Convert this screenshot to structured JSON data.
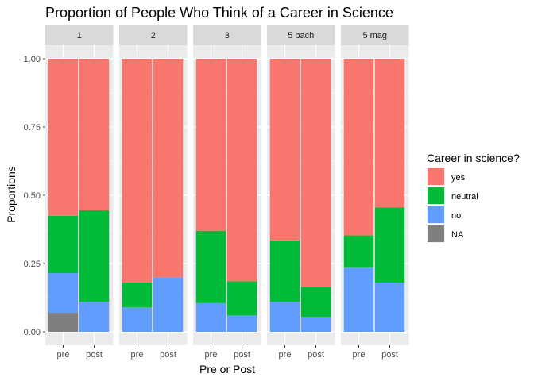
{
  "chart_data": {
    "type": "bar",
    "stacked": true,
    "title": "Proportion of People Who Think of a Career in Science",
    "xlabel": "Pre or Post",
    "ylabel": "Proportions",
    "ylim": [
      0,
      1
    ],
    "yticks": [
      "0.00",
      "0.25",
      "0.50",
      "0.75",
      "1.00"
    ],
    "ytick_values": [
      0,
      0.25,
      0.5,
      0.75,
      1
    ],
    "grid": true,
    "legend": {
      "title": "Career in science?",
      "position": "right",
      "entries": [
        {
          "label": "yes",
          "color": "#F8766D"
        },
        {
          "label": "neutral",
          "color": "#00BA38"
        },
        {
          "label": "no",
          "color": "#619CFF"
        },
        {
          "label": "NA",
          "color": "#7F7F7F"
        }
      ]
    },
    "categories": [
      "pre",
      "post"
    ],
    "facets": [
      {
        "label": "1",
        "bars": [
          {
            "x": "pre",
            "values": {
              "NA": 0.07,
              "no": 0.145,
              "neutral": 0.21,
              "yes": 0.575
            }
          },
          {
            "x": "post",
            "values": {
              "NA": 0,
              "no": 0.11,
              "neutral": 0.335,
              "yes": 0.555
            }
          }
        ]
      },
      {
        "label": "2",
        "bars": [
          {
            "x": "pre",
            "values": {
              "NA": 0,
              "no": 0.09,
              "neutral": 0.09,
              "yes": 0.82
            }
          },
          {
            "x": "post",
            "values": {
              "NA": 0,
              "no": 0.2,
              "neutral": 0,
              "yes": 0.8
            }
          }
        ]
      },
      {
        "label": "3",
        "bars": [
          {
            "x": "pre",
            "values": {
              "NA": 0,
              "no": 0.105,
              "neutral": 0.265,
              "yes": 0.63
            }
          },
          {
            "x": "post",
            "values": {
              "NA": 0,
              "no": 0.06,
              "neutral": 0.125,
              "yes": 0.815
            }
          }
        ]
      },
      {
        "label": "5 bach",
        "bars": [
          {
            "x": "pre",
            "values": {
              "NA": 0,
              "no": 0.11,
              "neutral": 0.225,
              "yes": 0.665
            }
          },
          {
            "x": "post",
            "values": {
              "NA": 0,
              "no": 0.055,
              "neutral": 0.11,
              "yes": 0.835
            }
          }
        ]
      },
      {
        "label": "5 mag",
        "bars": [
          {
            "x": "pre",
            "values": {
              "NA": 0,
              "no": 0.235,
              "neutral": 0.118,
              "yes": 0.647
            }
          },
          {
            "x": "post",
            "values": {
              "NA": 0,
              "no": 0.18,
              "neutral": 0.275,
              "yes": 0.545
            }
          }
        ]
      }
    ],
    "colors": {
      "panel_bg": "#EBEBEB",
      "strip_bg": "#D9D9D9",
      "grid_major": "#FFFFFF",
      "axis_text": "#4D4D4D"
    }
  }
}
